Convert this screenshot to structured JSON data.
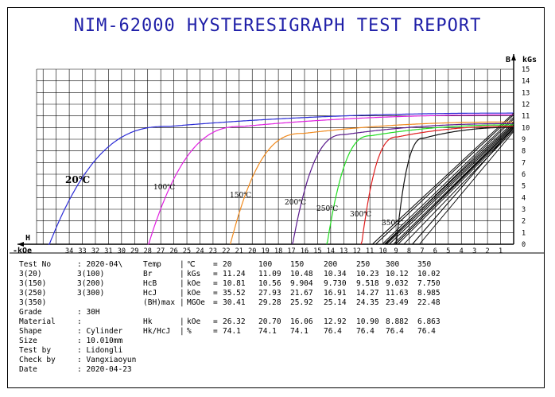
{
  "report": {
    "title": "NIM-62000 HYSTERESIGRAPH TEST REPORT",
    "info": [
      {
        "label": "Test No",
        "value": ": 2020-04\\"
      },
      {
        "label": "3(20)",
        "value": "3(100)"
      },
      {
        "label": "3(150)",
        "value": "3(200)"
      },
      {
        "label": "3(250)",
        "value": "3(300)"
      },
      {
        "label": "3(350)",
        "value": ""
      },
      {
        "label": "Grade",
        "value": ": 30H"
      },
      {
        "label": "Material",
        "value": ":"
      },
      {
        "label": "Shape",
        "value": ": Cylinder"
      },
      {
        "label": "Size",
        "value": ": 10.010mm"
      },
      {
        "label": "Test by",
        "value": ": Lidongli"
      },
      {
        "label": "Check by",
        "value": ": Vangxiaoyun"
      },
      {
        "label": "Date",
        "value": ": 2020-04-23"
      }
    ],
    "table": {
      "columns": [
        "20",
        "100",
        "150",
        "200",
        "250",
        "300",
        "350"
      ],
      "rows": [
        {
          "name": "Temp",
          "unit": "℃",
          "values": [
            "20",
            "100",
            "150",
            "200",
            "250",
            "300",
            "350"
          ]
        },
        {
          "name": "Br",
          "unit": "kGs",
          "values": [
            "11.24",
            "11.09",
            "10.48",
            "10.34",
            "10.23",
            "10.12",
            "10.02"
          ]
        },
        {
          "name": "HcB",
          "unit": "kOe",
          "values": [
            "10.81",
            "10.56",
            "9.904",
            "9.730",
            "9.518",
            "9.032",
            "7.750"
          ]
        },
        {
          "name": "HcJ",
          "unit": "kOe",
          "values": [
            "35.52",
            "27.93",
            "21.67",
            "16.91",
            "14.27",
            "11.63",
            "8.985"
          ]
        },
        {
          "name": "(BH)max",
          "unit": "MGOe",
          "values": [
            "30.41",
            "29.28",
            "25.92",
            "25.14",
            "24.35",
            "23.49",
            "22.48"
          ]
        },
        {
          "name": "Hk",
          "unit": "kOe",
          "values": [
            "26.32",
            "20.70",
            "16.06",
            "12.92",
            "10.90",
            "8.882",
            "6.863"
          ]
        },
        {
          "name": "Hk/HcJ",
          "unit": "%",
          "values": [
            "74.1",
            "74.1",
            "74.1",
            "76.4",
            "76.4",
            "76.4",
            "76.4"
          ]
        }
      ]
    }
  },
  "chart_data": {
    "type": "line",
    "xlabel": "kOe",
    "xlabel_prefix": "-",
    "x_axis_letter": "H",
    "ylabel": "kGs",
    "y_axis_letter": "B",
    "x_ticks": [
      34,
      33,
      32,
      31,
      30,
      29,
      28,
      27,
      26,
      25,
      24,
      23,
      22,
      21,
      20,
      19,
      18,
      17,
      16,
      15,
      14,
      13,
      12,
      11,
      10,
      9,
      8,
      7,
      6,
      5,
      4,
      3,
      2,
      1
    ],
    "y_ticks": [
      0,
      1,
      2,
      3,
      4,
      5,
      6,
      7,
      8,
      9,
      10,
      11,
      12,
      13,
      14,
      15
    ],
    "xlim": [
      0,
      36.5
    ],
    "ylim": [
      0,
      15
    ],
    "grid": true,
    "series": [
      {
        "name": "20℃",
        "color": "#2b2bd6",
        "Br": 11.24,
        "HcJ": 35.52,
        "Hk": 26.32,
        "HcB": 10.81,
        "knee_B": 10.1
      },
      {
        "name": "100℃",
        "color": "#e020e0",
        "Br": 11.09,
        "HcJ": 27.93,
        "Hk": 20.7,
        "HcB": 10.56,
        "knee_B": 10.1
      },
      {
        "name": "150℃",
        "color": "#f08a1e",
        "Br": 10.48,
        "HcJ": 21.67,
        "Hk": 16.06,
        "HcB": 9.904,
        "knee_B": 9.5
      },
      {
        "name": "200℃",
        "color": "#5a1a8c",
        "Br": 10.34,
        "HcJ": 16.91,
        "Hk": 12.92,
        "HcB": 9.73,
        "knee_B": 9.4
      },
      {
        "name": "250℃",
        "color": "#22dd22",
        "Br": 10.23,
        "HcJ": 14.27,
        "Hk": 10.9,
        "HcB": 9.518,
        "knee_B": 9.3
      },
      {
        "name": "300℃",
        "color": "#e01e1e",
        "Br": 10.12,
        "HcJ": 11.63,
        "Hk": 8.882,
        "HcB": 9.032,
        "knee_B": 9.2
      },
      {
        "name": "350℃",
        "color": "#111111",
        "Br": 10.02,
        "HcJ": 8.985,
        "Hk": 6.863,
        "HcB": 7.75,
        "knee_B": 9.1
      }
    ]
  }
}
